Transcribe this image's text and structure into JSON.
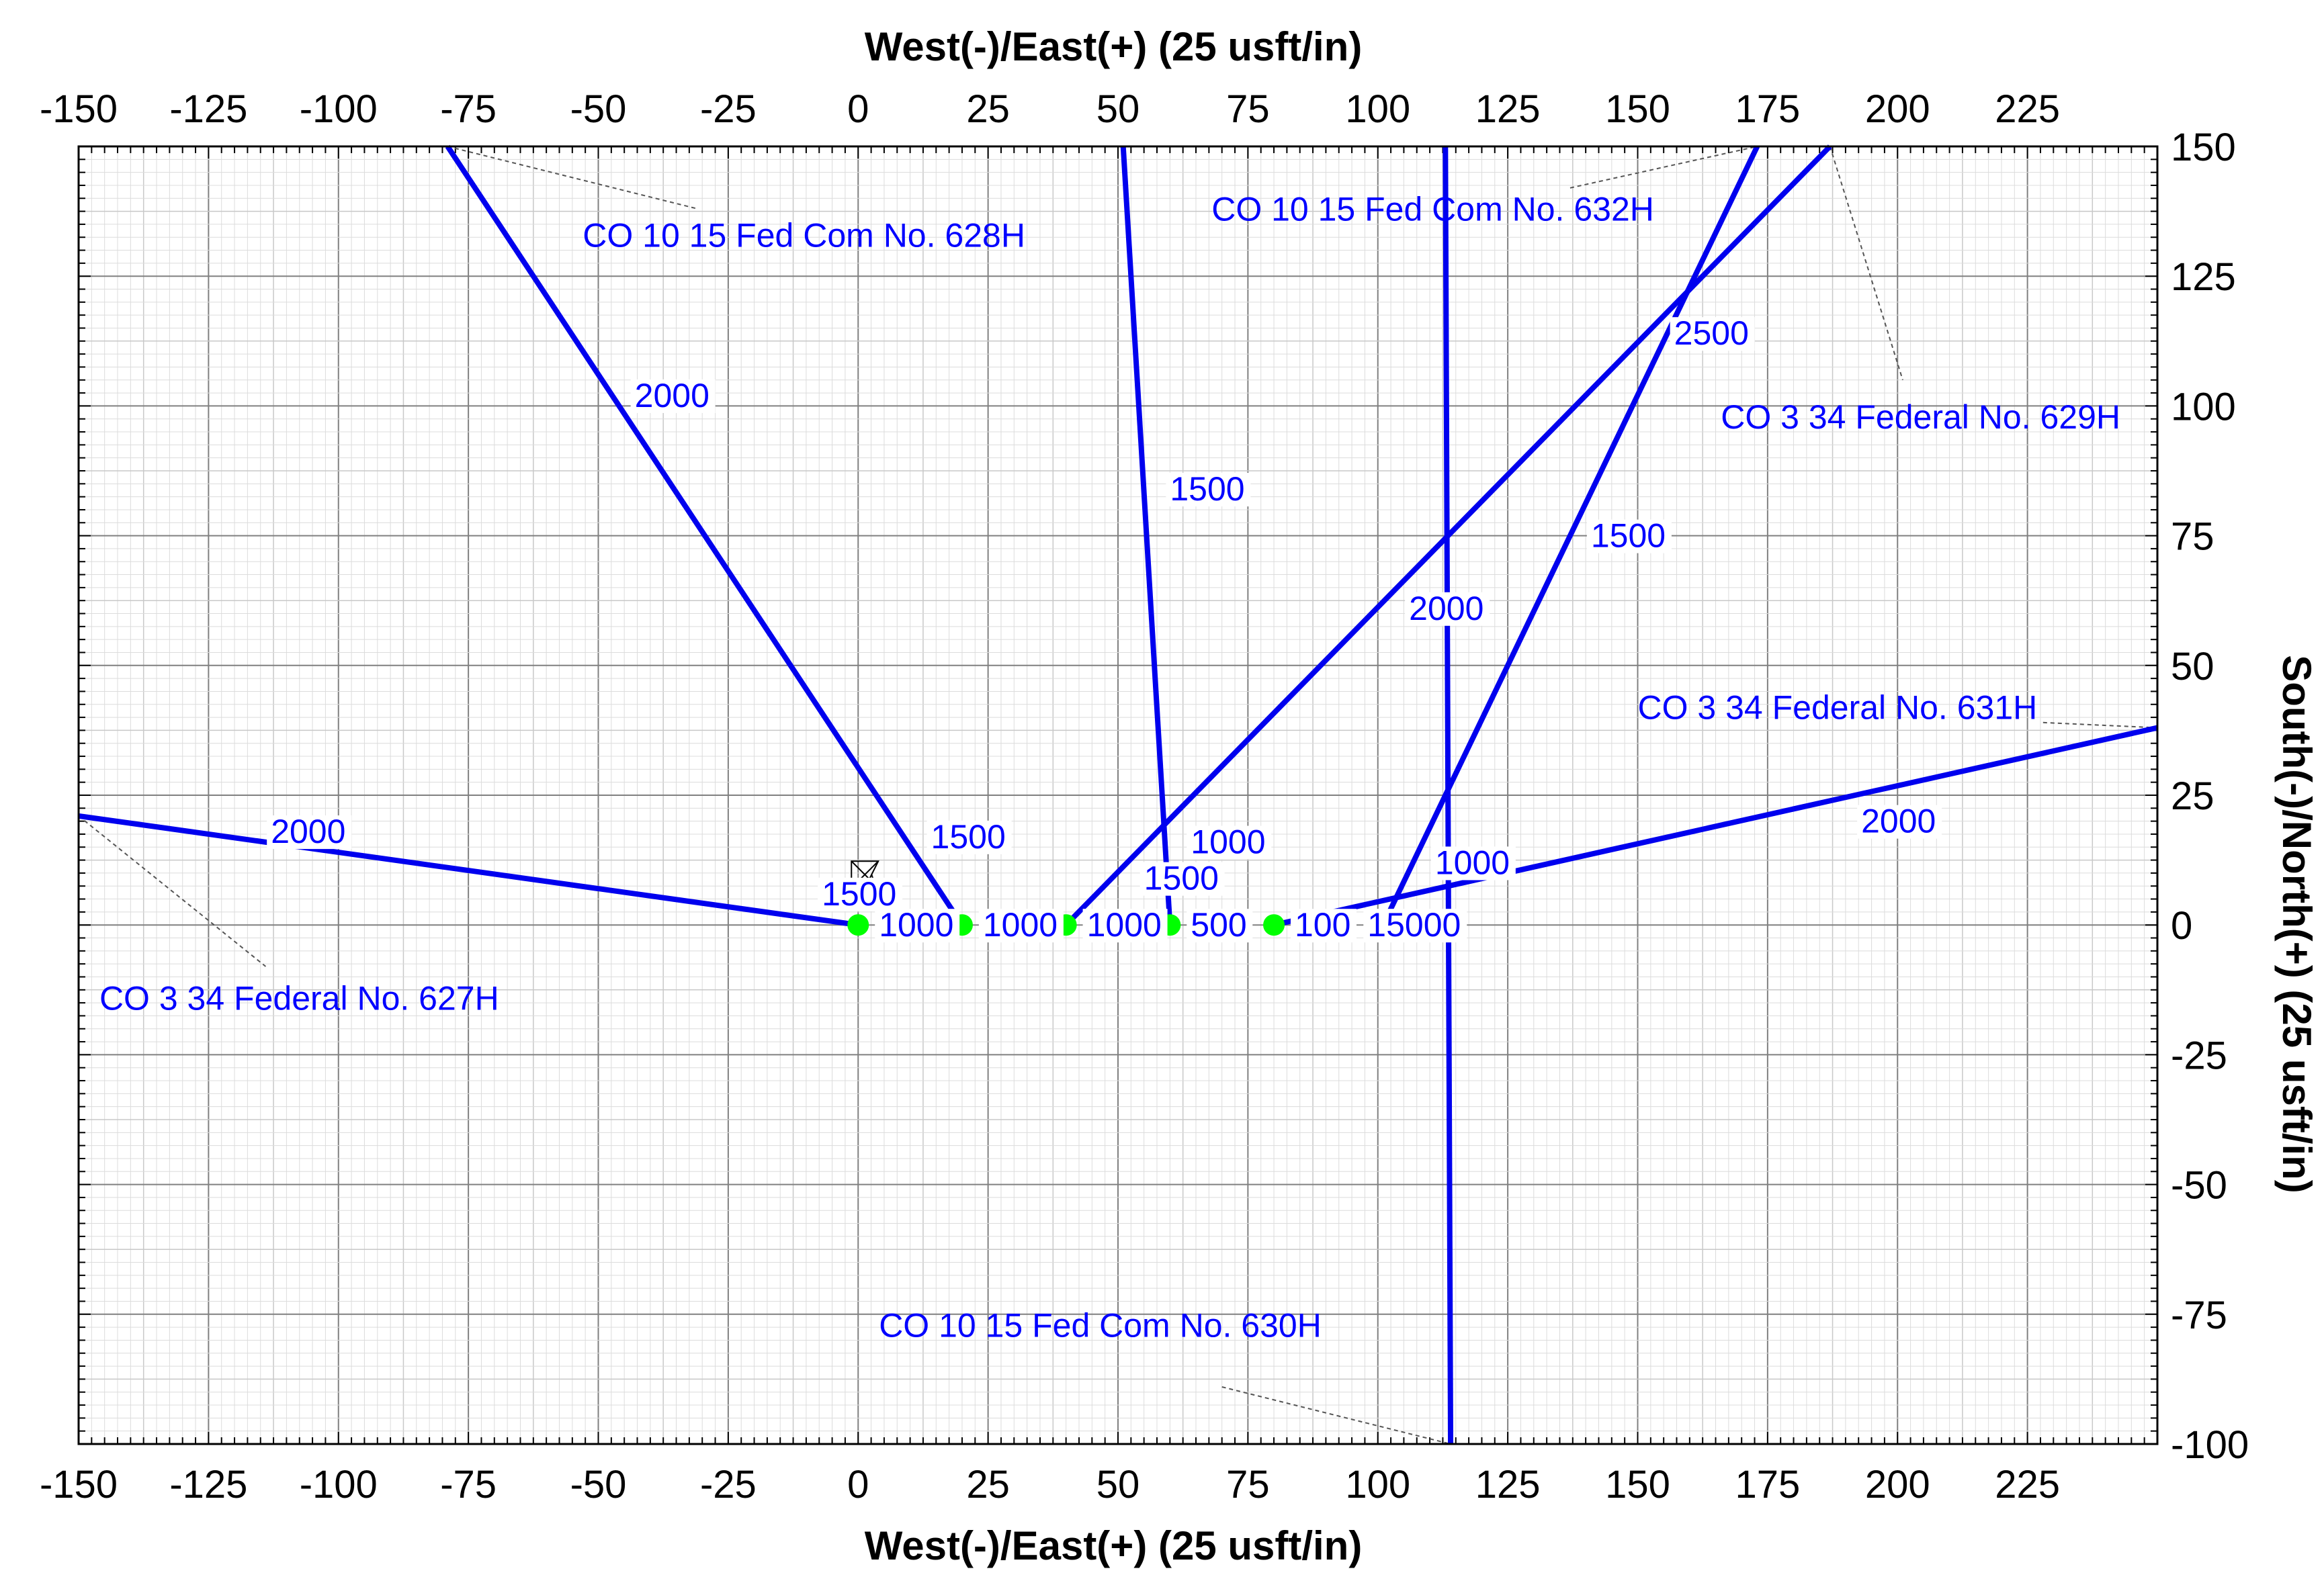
{
  "chart_data": {
    "type": "line",
    "title": "",
    "xlabel_top": "West(-)/East(+) (25 usft/in)",
    "xlabel_bottom": "West(-)/East(+) (25 usft/in)",
    "ylabel": "South(-)/North(+) (25 usft/in)",
    "xlim": [
      -150,
      250
    ],
    "ylim": [
      -100,
      150
    ],
    "x_ticks": [
      -150,
      -125,
      -100,
      -75,
      -50,
      -25,
      0,
      25,
      50,
      75,
      100,
      125,
      150,
      175,
      200,
      225
    ],
    "y_ticks": [
      -100,
      -75,
      -50,
      -25,
      0,
      25,
      50,
      75,
      100,
      125,
      150
    ],
    "x_tick_labels": [
      "-150",
      "-125",
      "-100",
      "-75",
      "-50",
      "-25",
      "0",
      "25",
      "50",
      "75",
      "100",
      "125",
      "150",
      "175",
      "200",
      "225"
    ],
    "y_tick_labels": [
      "-100",
      "-75",
      "-50",
      "-25",
      "0",
      "25",
      "50",
      "75",
      "100",
      "125",
      "150"
    ],
    "grid": true,
    "series_color": "#0000ee",
    "surface_color": "#00ff00",
    "surface_locations": [
      {
        "x": 0,
        "y": 0
      },
      {
        "x": 20,
        "y": 0
      },
      {
        "x": 40,
        "y": 0
      },
      {
        "x": 60,
        "y": 0
      },
      {
        "x": 80,
        "y": 0
      }
    ],
    "series": [
      {
        "name": "CO 3 34 Federal No. 627H",
        "points": [
          [
            0,
            0
          ],
          [
            -150,
            21
          ]
        ],
        "label_pos": [
          -146,
          -14
        ],
        "leader": [
          [
            -150,
            21
          ],
          [
            -114,
            -8
          ]
        ]
      },
      {
        "name": "CO 10 15 Fed Com No. 628H",
        "points": [
          [
            20,
            0
          ],
          [
            -79,
            150
          ]
        ],
        "label_pos": [
          -53,
          133
        ],
        "leader": [
          [
            -79,
            150
          ],
          [
            -31,
            138
          ]
        ]
      },
      {
        "name": "CO 10 15 Fed Com No. 630H",
        "points": [
          [
            113,
            150
          ],
          [
            114,
            -100
          ]
        ],
        "label_pos": [
          4,
          -77
        ],
        "leader": [
          [
            70,
            -89
          ],
          [
            114,
            -100
          ]
        ]
      },
      {
        "name": "CO 10 15 Fed Com No. 632H",
        "points": [
          [
            60,
            0
          ],
          [
            51,
            150
          ]
        ],
        "label_pos": [
          68,
          138
        ],
        "leader": [
          [
            137,
            142
          ],
          [
            173,
            150
          ]
        ]
      },
      {
        "name": "CO 3 34 Federal No. 629H",
        "points": [
          [
            40,
            0
          ],
          [
            187,
            150
          ]
        ],
        "label_pos": [
          166,
          98
        ],
        "leader": [
          [
            187,
            150
          ],
          [
            201,
            105
          ]
        ]
      },
      {
        "name": "CO 3 34 Federal No. 631H",
        "points": [
          [
            80,
            0
          ],
          [
            250,
            38
          ]
        ],
        "label_pos": [
          150,
          42
        ],
        "leader": [
          [
            228,
            39
          ],
          [
            250,
            38
          ]
        ]
      },
      {
        "name": "",
        "points": [
          [
            101,
            0
          ],
          [
            173,
            150
          ]
        ],
        "label_pos": null,
        "leader": null
      }
    ],
    "depth_labels": [
      {
        "text": "2000",
        "x": -113,
        "y": 18
      },
      {
        "text": "1500",
        "x": -7,
        "y": 6
      },
      {
        "text": "1000",
        "x": 4,
        "y": 0
      },
      {
        "text": "2000",
        "x": -43,
        "y": 102
      },
      {
        "text": "1500",
        "x": 14,
        "y": 17
      },
      {
        "text": "1000",
        "x": 24,
        "y": 0
      },
      {
        "text": "1000",
        "x": 44,
        "y": 0
      },
      {
        "text": "1500",
        "x": 60,
        "y": 84
      },
      {
        "text": "1000",
        "x": 64,
        "y": 16
      },
      {
        "text": "1500",
        "x": 55,
        "y": 9
      },
      {
        "text": "500",
        "x": 64,
        "y": 0
      },
      {
        "text": "100",
        "x": 84,
        "y": 0
      },
      {
        "text": "15000",
        "x": 98,
        "y": 0
      },
      {
        "text": "1000",
        "x": 111,
        "y": 12
      },
      {
        "text": "2000",
        "x": 106,
        "y": 61
      },
      {
        "text": "1500",
        "x": 141,
        "y": 75
      },
      {
        "text": "2500",
        "x": 157,
        "y": 114
      },
      {
        "text": "2000",
        "x": 193,
        "y": 20
      }
    ]
  }
}
